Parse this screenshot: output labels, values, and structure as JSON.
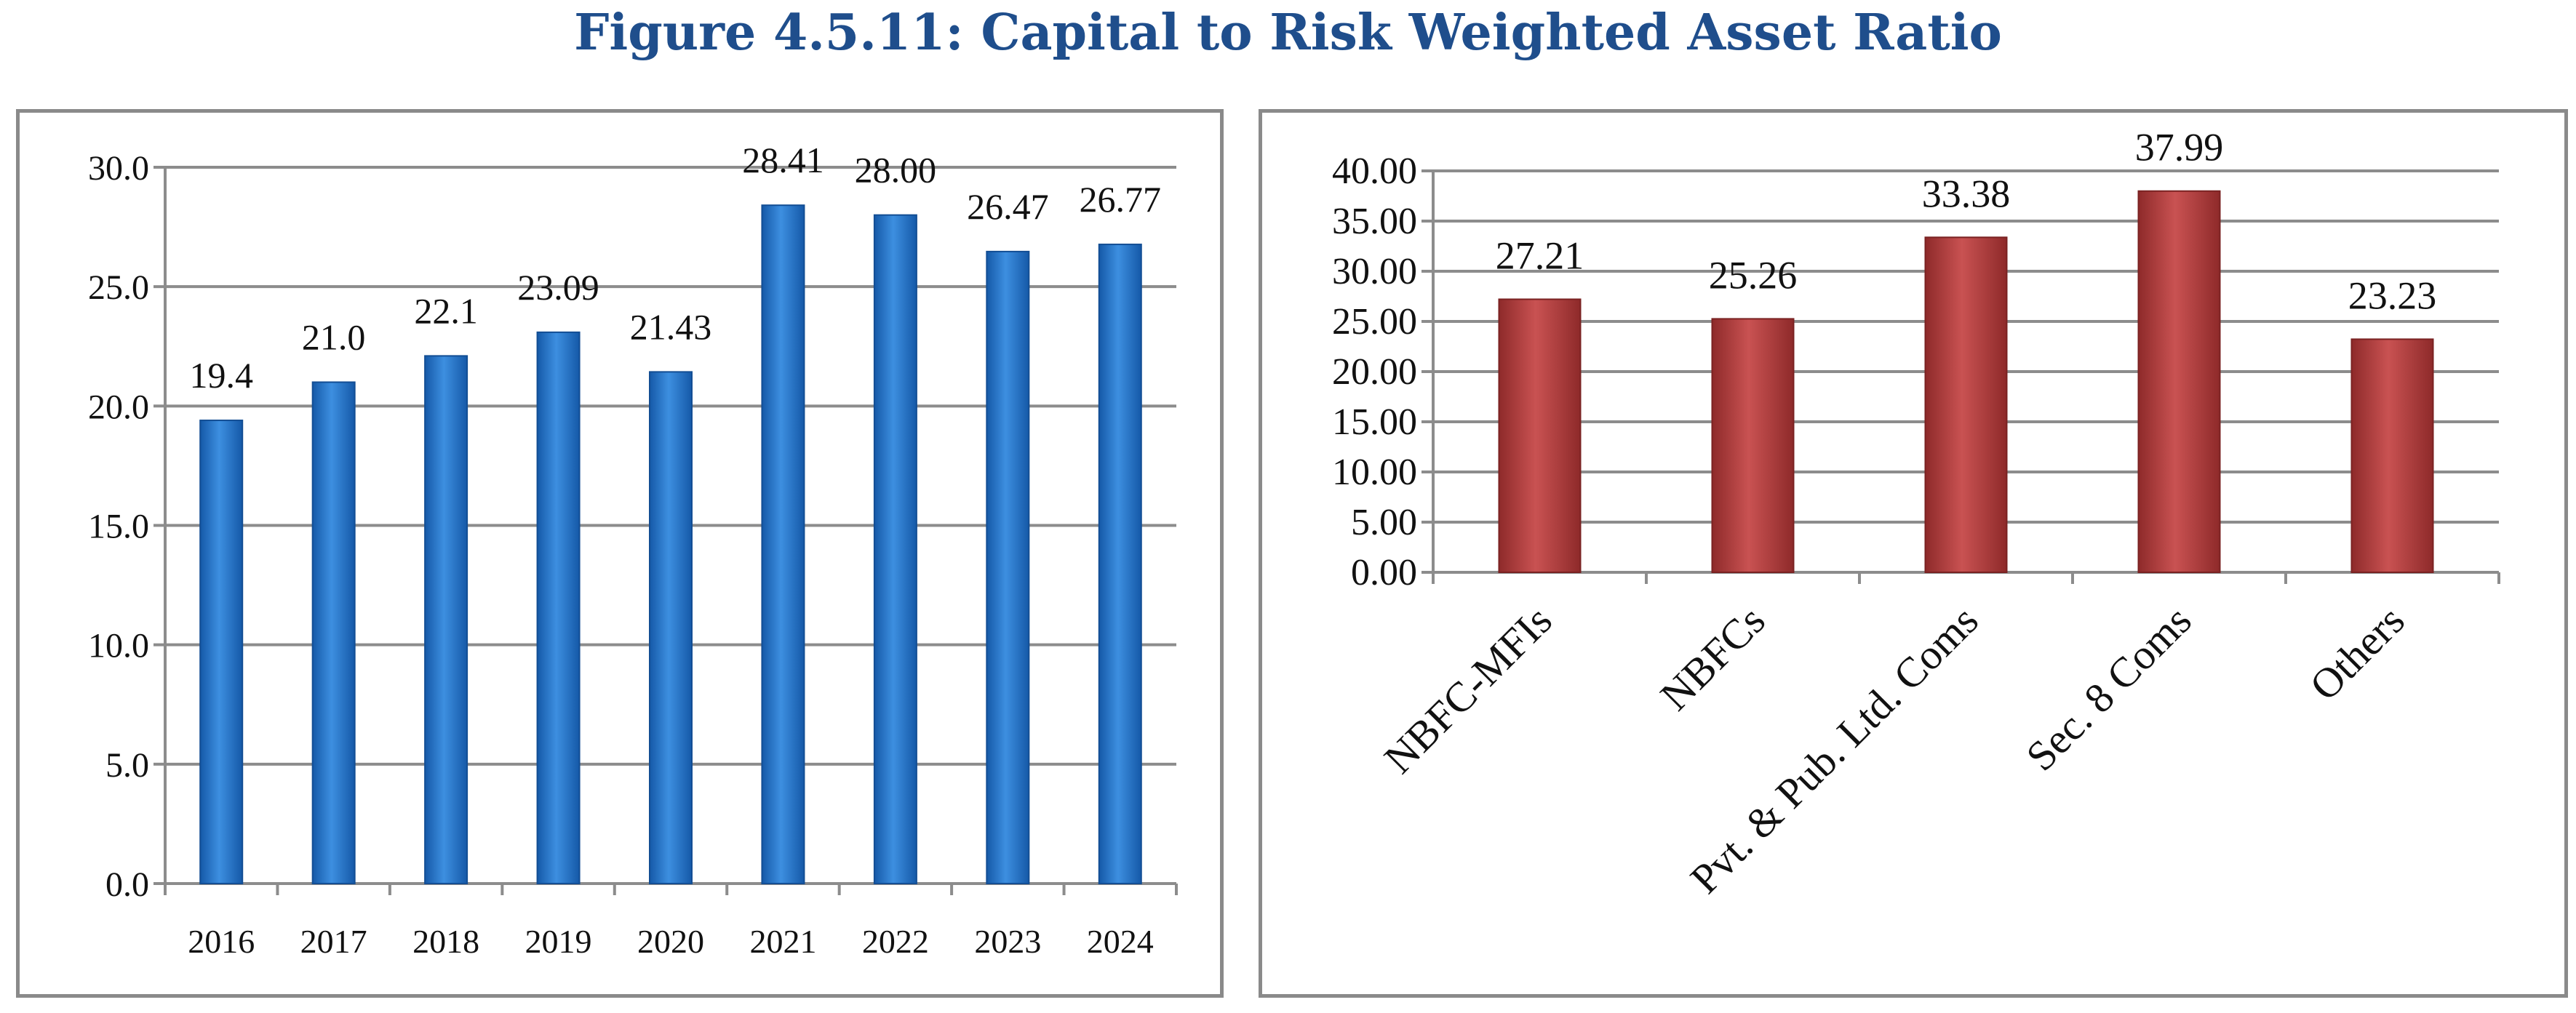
{
  "title": "Figure 4.5.11: Capital to Risk Weighted Asset Ratio",
  "colors": {
    "left_bar": "#1f6fc0",
    "right_bar": "#a83a3a",
    "title": "#1f4e8c"
  },
  "chart_data": [
    {
      "type": "bar",
      "categories": [
        "2016",
        "2017",
        "2018",
        "2019",
        "2020",
        "2021",
        "2022",
        "2023",
        "2024"
      ],
      "values": [
        19.4,
        21.0,
        22.1,
        23.09,
        21.43,
        28.41,
        28.0,
        26.47,
        26.77
      ],
      "data_labels": [
        "19.4",
        "21.0",
        "22.1",
        "23.09",
        "21.43",
        "28.41",
        "28.00",
        "26.47",
        "26.77"
      ],
      "ylim": [
        0,
        30
      ],
      "yticks": [
        "0.0",
        "5.0",
        "10.0",
        "15.0",
        "20.0",
        "25.0",
        "30.0"
      ],
      "grid": true
    },
    {
      "type": "bar",
      "categories": [
        "NBFC-MFIs",
        "NBFCs",
        "Pvt. & Pub. Ltd. Coms",
        "Sec. 8 Coms",
        "Others"
      ],
      "values": [
        27.21,
        25.26,
        33.38,
        37.99,
        23.23
      ],
      "data_labels": [
        "27.21",
        "25.26",
        "33.38",
        "37.99",
        "23.23"
      ],
      "ylim": [
        0,
        40
      ],
      "yticks": [
        "0.00",
        "5.00",
        "10.00",
        "15.00",
        "20.00",
        "25.00",
        "30.00",
        "35.00",
        "40.00"
      ],
      "grid": true
    }
  ]
}
